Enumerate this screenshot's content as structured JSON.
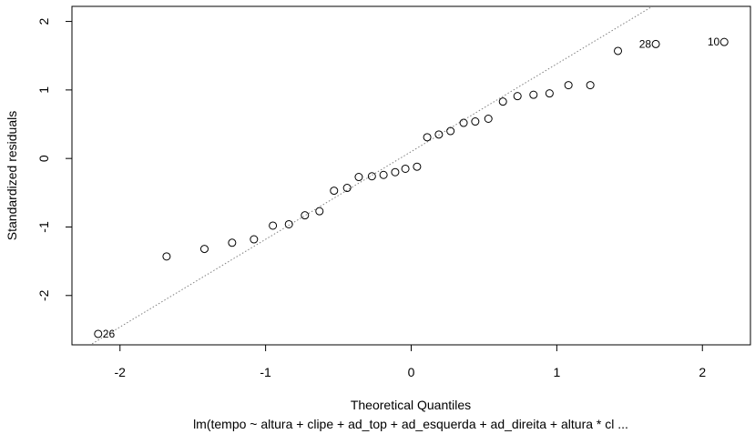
{
  "chart_data": {
    "type": "scatter",
    "title": "",
    "xlabel": "Theoretical Quantiles",
    "ylabel": "Standardized residuals",
    "subtitle": "lm(tempo ~ altura + clipe + ad_top + ad_esquerda + ad_direita + altura * cl ...",
    "xlim": [
      -2.33,
      2.33
    ],
    "ylim": [
      -2.72,
      2.22
    ],
    "xticks": [
      -2,
      -1,
      0,
      1,
      2
    ],
    "xtick_labels": [
      "-2",
      "-1",
      "0",
      "1",
      "2"
    ],
    "yticks": [
      -2,
      -1,
      0,
      1,
      2
    ],
    "ytick_labels": [
      "-2",
      "-1",
      "0",
      "1",
      "2"
    ],
    "grid": false,
    "legend": "none",
    "reference_line": {
      "intercept": 0.1,
      "slope": 1.28,
      "style": "dotted",
      "color": "#808080"
    },
    "points": [
      {
        "x": -2.15,
        "y": -2.56
      },
      {
        "x": -1.68,
        "y": -1.43
      },
      {
        "x": -1.42,
        "y": -1.32
      },
      {
        "x": -1.23,
        "y": -1.23
      },
      {
        "x": -1.08,
        "y": -1.18
      },
      {
        "x": -0.95,
        "y": -0.98
      },
      {
        "x": -0.84,
        "y": -0.96
      },
      {
        "x": -0.73,
        "y": -0.83
      },
      {
        "x": -0.63,
        "y": -0.77
      },
      {
        "x": -0.53,
        "y": -0.47
      },
      {
        "x": -0.44,
        "y": -0.43
      },
      {
        "x": -0.36,
        "y": -0.27
      },
      {
        "x": -0.27,
        "y": -0.26
      },
      {
        "x": -0.19,
        "y": -0.24
      },
      {
        "x": -0.11,
        "y": -0.2
      },
      {
        "x": -0.04,
        "y": -0.15
      },
      {
        "x": 0.04,
        "y": -0.12
      },
      {
        "x": 0.11,
        "y": 0.31
      },
      {
        "x": 0.19,
        "y": 0.35
      },
      {
        "x": 0.27,
        "y": 0.4
      },
      {
        "x": 0.36,
        "y": 0.52
      },
      {
        "x": 0.44,
        "y": 0.54
      },
      {
        "x": 0.53,
        "y": 0.58
      },
      {
        "x": 0.63,
        "y": 0.83
      },
      {
        "x": 0.73,
        "y": 0.91
      },
      {
        "x": 0.84,
        "y": 0.93
      },
      {
        "x": 0.95,
        "y": 0.95
      },
      {
        "x": 1.08,
        "y": 1.07
      },
      {
        "x": 1.23,
        "y": 1.07
      },
      {
        "x": 1.42,
        "y": 1.57
      },
      {
        "x": 1.68,
        "y": 1.67
      },
      {
        "x": 2.15,
        "y": 1.7
      }
    ],
    "point_labels": [
      {
        "index": 0,
        "text": "26",
        "side": "right"
      },
      {
        "index": 30,
        "text": "28",
        "side": "left"
      },
      {
        "index": 31,
        "text": "10",
        "side": "left"
      }
    ]
  }
}
